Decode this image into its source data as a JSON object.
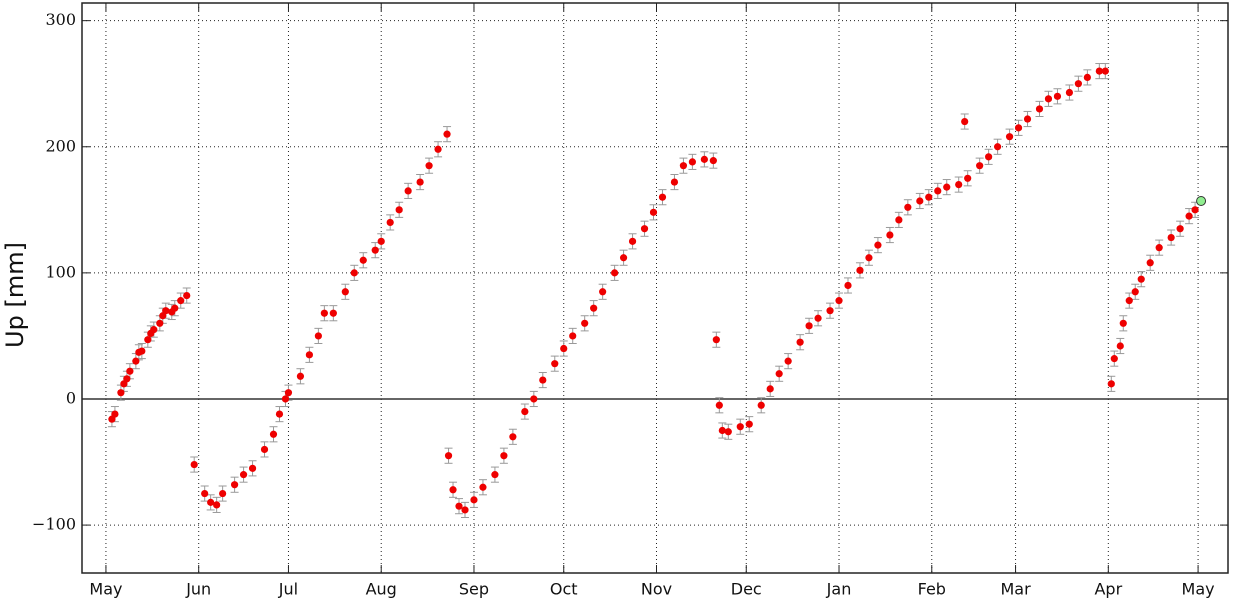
{
  "chart_data": {
    "type": "scatter",
    "ylabel": "Up [mm]",
    "xlim": [
      -8,
      375
    ],
    "xticks": [
      {
        "value": 0,
        "label": "May"
      },
      {
        "value": 31,
        "label": "Jun"
      },
      {
        "value": 61,
        "label": "Jul"
      },
      {
        "value": 92,
        "label": "Aug"
      },
      {
        "value": 123,
        "label": "Sep"
      },
      {
        "value": 153,
        "label": "Oct"
      },
      {
        "value": 184,
        "label": "Nov"
      },
      {
        "value": 214,
        "label": "Dec"
      },
      {
        "value": 245,
        "label": "Jan"
      },
      {
        "value": 276,
        "label": "Feb"
      },
      {
        "value": 304,
        "label": "Mar"
      },
      {
        "value": 335,
        "label": "Apr"
      },
      {
        "value": 365,
        "label": "May"
      }
    ],
    "ylim": [
      -138,
      314
    ],
    "yticks": [
      {
        "value": -100,
        "label": "−100"
      },
      0,
      100,
      200,
      300
    ],
    "grid": true,
    "zero_line": true,
    "series": [
      {
        "color": "#ee0000",
        "yerr": 6,
        "x": [
          2,
          3,
          5,
          6,
          7,
          8,
          10,
          11,
          12,
          14,
          15,
          16,
          18,
          19,
          20,
          22,
          23,
          25,
          27,
          29.5,
          33,
          35,
          37,
          39,
          43,
          46,
          49,
          53,
          56,
          58,
          60,
          61,
          65,
          68,
          71,
          73,
          76,
          80,
          83,
          86,
          90,
          92,
          95,
          98,
          101,
          105,
          108,
          111,
          114,
          114.5,
          116,
          118,
          120,
          123,
          126,
          130,
          133,
          136,
          140,
          143,
          146,
          150,
          153,
          156,
          160,
          163,
          166,
          170,
          173,
          176,
          180,
          183,
          186,
          190,
          193,
          196,
          200,
          203,
          204,
          205,
          206,
          208,
          212,
          215,
          219,
          222,
          225,
          228,
          232,
          235,
          238,
          242,
          245,
          248,
          252,
          255,
          258,
          262,
          265,
          268,
          272,
          275,
          278,
          281,
          285,
          287,
          288,
          292,
          295,
          298,
          302,
          305,
          308,
          312,
          315,
          318,
          322,
          325,
          328,
          332,
          334,
          336,
          337,
          339,
          340,
          342,
          344,
          346,
          349,
          352,
          356,
          359,
          362,
          364
        ],
        "values": [
          -16,
          -12,
          5,
          12,
          16,
          22,
          30,
          37,
          38,
          47,
          52,
          55,
          60,
          66,
          70,
          69,
          72,
          78,
          82,
          -52,
          -75,
          -82,
          -84,
          -75,
          -68,
          -60,
          -55,
          -40,
          -28,
          -12,
          0,
          5,
          18,
          35,
          50,
          68,
          68,
          85,
          100,
          110,
          118,
          125,
          140,
          150,
          165,
          172,
          185,
          198,
          210,
          -45,
          -72,
          -85,
          -88,
          -80,
          -70,
          -60,
          -45,
          -30,
          -10,
          0,
          15,
          28,
          40,
          50,
          60,
          72,
          85,
          100,
          112,
          125,
          135,
          148,
          160,
          172,
          185,
          188,
          190,
          189,
          47,
          -5,
          -25,
          -26,
          -22,
          -20,
          -5,
          8,
          20,
          30,
          45,
          58,
          64,
          70,
          78,
          90,
          102,
          112,
          122,
          130,
          142,
          152,
          157,
          160,
          165,
          168,
          170,
          220,
          175,
          185,
          192,
          200,
          208,
          215,
          222,
          230,
          238,
          240,
          243,
          250,
          255,
          260,
          260,
          12,
          32,
          42,
          60,
          78,
          85,
          95,
          108,
          120,
          128,
          135,
          145,
          150
        ]
      }
    ],
    "highlight": {
      "x": 366,
      "y": 157,
      "color": "#90ee90"
    }
  }
}
